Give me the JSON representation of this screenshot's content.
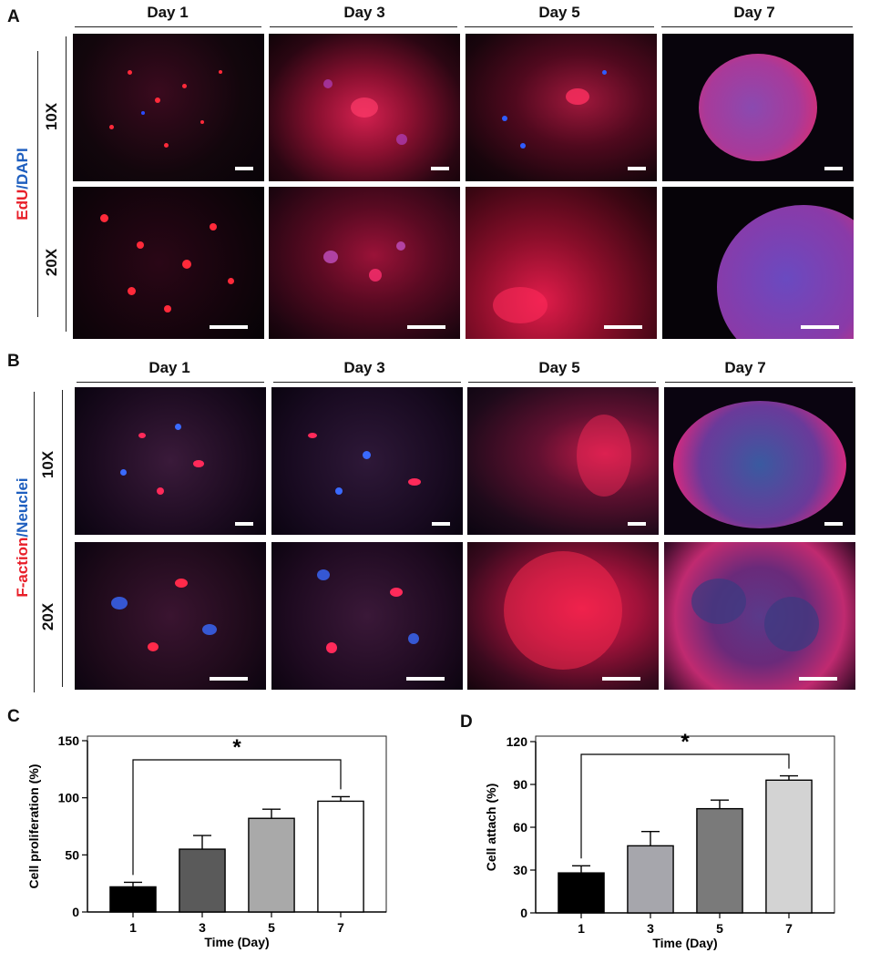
{
  "panels": {
    "A": {
      "letter": "A",
      "stain_label_red": "EdU",
      "stain_label_sep": "/",
      "stain_label_blue": "DAPI",
      "days": [
        "Day 1",
        "Day 3",
        "Day 5",
        "Day 7"
      ],
      "magnifications": [
        "10X",
        "20X"
      ]
    },
    "B": {
      "letter": "B",
      "stain_label_red": "F-action",
      "stain_label_sep": "/",
      "stain_label_blue": "Neuclei",
      "days": [
        "Day 1",
        "Day 3",
        "Day 5",
        "Day 7"
      ],
      "magnifications": [
        "10X",
        "20X"
      ]
    },
    "C": {
      "letter": "C"
    },
    "D": {
      "letter": "D"
    }
  },
  "colors": {
    "stain_red": "#e8202a",
    "stain_blue": "#1f5fbf"
  },
  "chart_data": [
    {
      "type": "bar",
      "panel": "C",
      "categories": [
        "1",
        "3",
        "5",
        "7"
      ],
      "values": [
        22,
        55,
        82,
        97
      ],
      "errors": [
        4,
        12,
        8,
        4
      ],
      "bar_colors": [
        "#000000",
        "#5a5a5a",
        "#a9a9a9",
        "#ffffff"
      ],
      "xlabel": "Time (Day)",
      "ylabel": "Cell proliferation (%)",
      "ylim": [
        0,
        150
      ],
      "yticks": [
        0,
        50,
        100,
        150
      ],
      "significance": {
        "from": "1",
        "to": "7",
        "label": "*"
      },
      "grid": false
    },
    {
      "type": "bar",
      "panel": "D",
      "categories": [
        "1",
        "3",
        "5",
        "7"
      ],
      "values": [
        28,
        47,
        73,
        93
      ],
      "errors": [
        5,
        10,
        6,
        3
      ],
      "bar_colors": [
        "#000000",
        "#a6a6ac",
        "#7a7a7a",
        "#d3d3d3"
      ],
      "xlabel": "Time (Day)",
      "ylabel": "Cell attach (%)",
      "ylim": [
        0,
        120
      ],
      "yticks": [
        0,
        30,
        60,
        90,
        120
      ],
      "significance": {
        "from": "1",
        "to": "7",
        "label": "*"
      },
      "grid": false
    }
  ]
}
